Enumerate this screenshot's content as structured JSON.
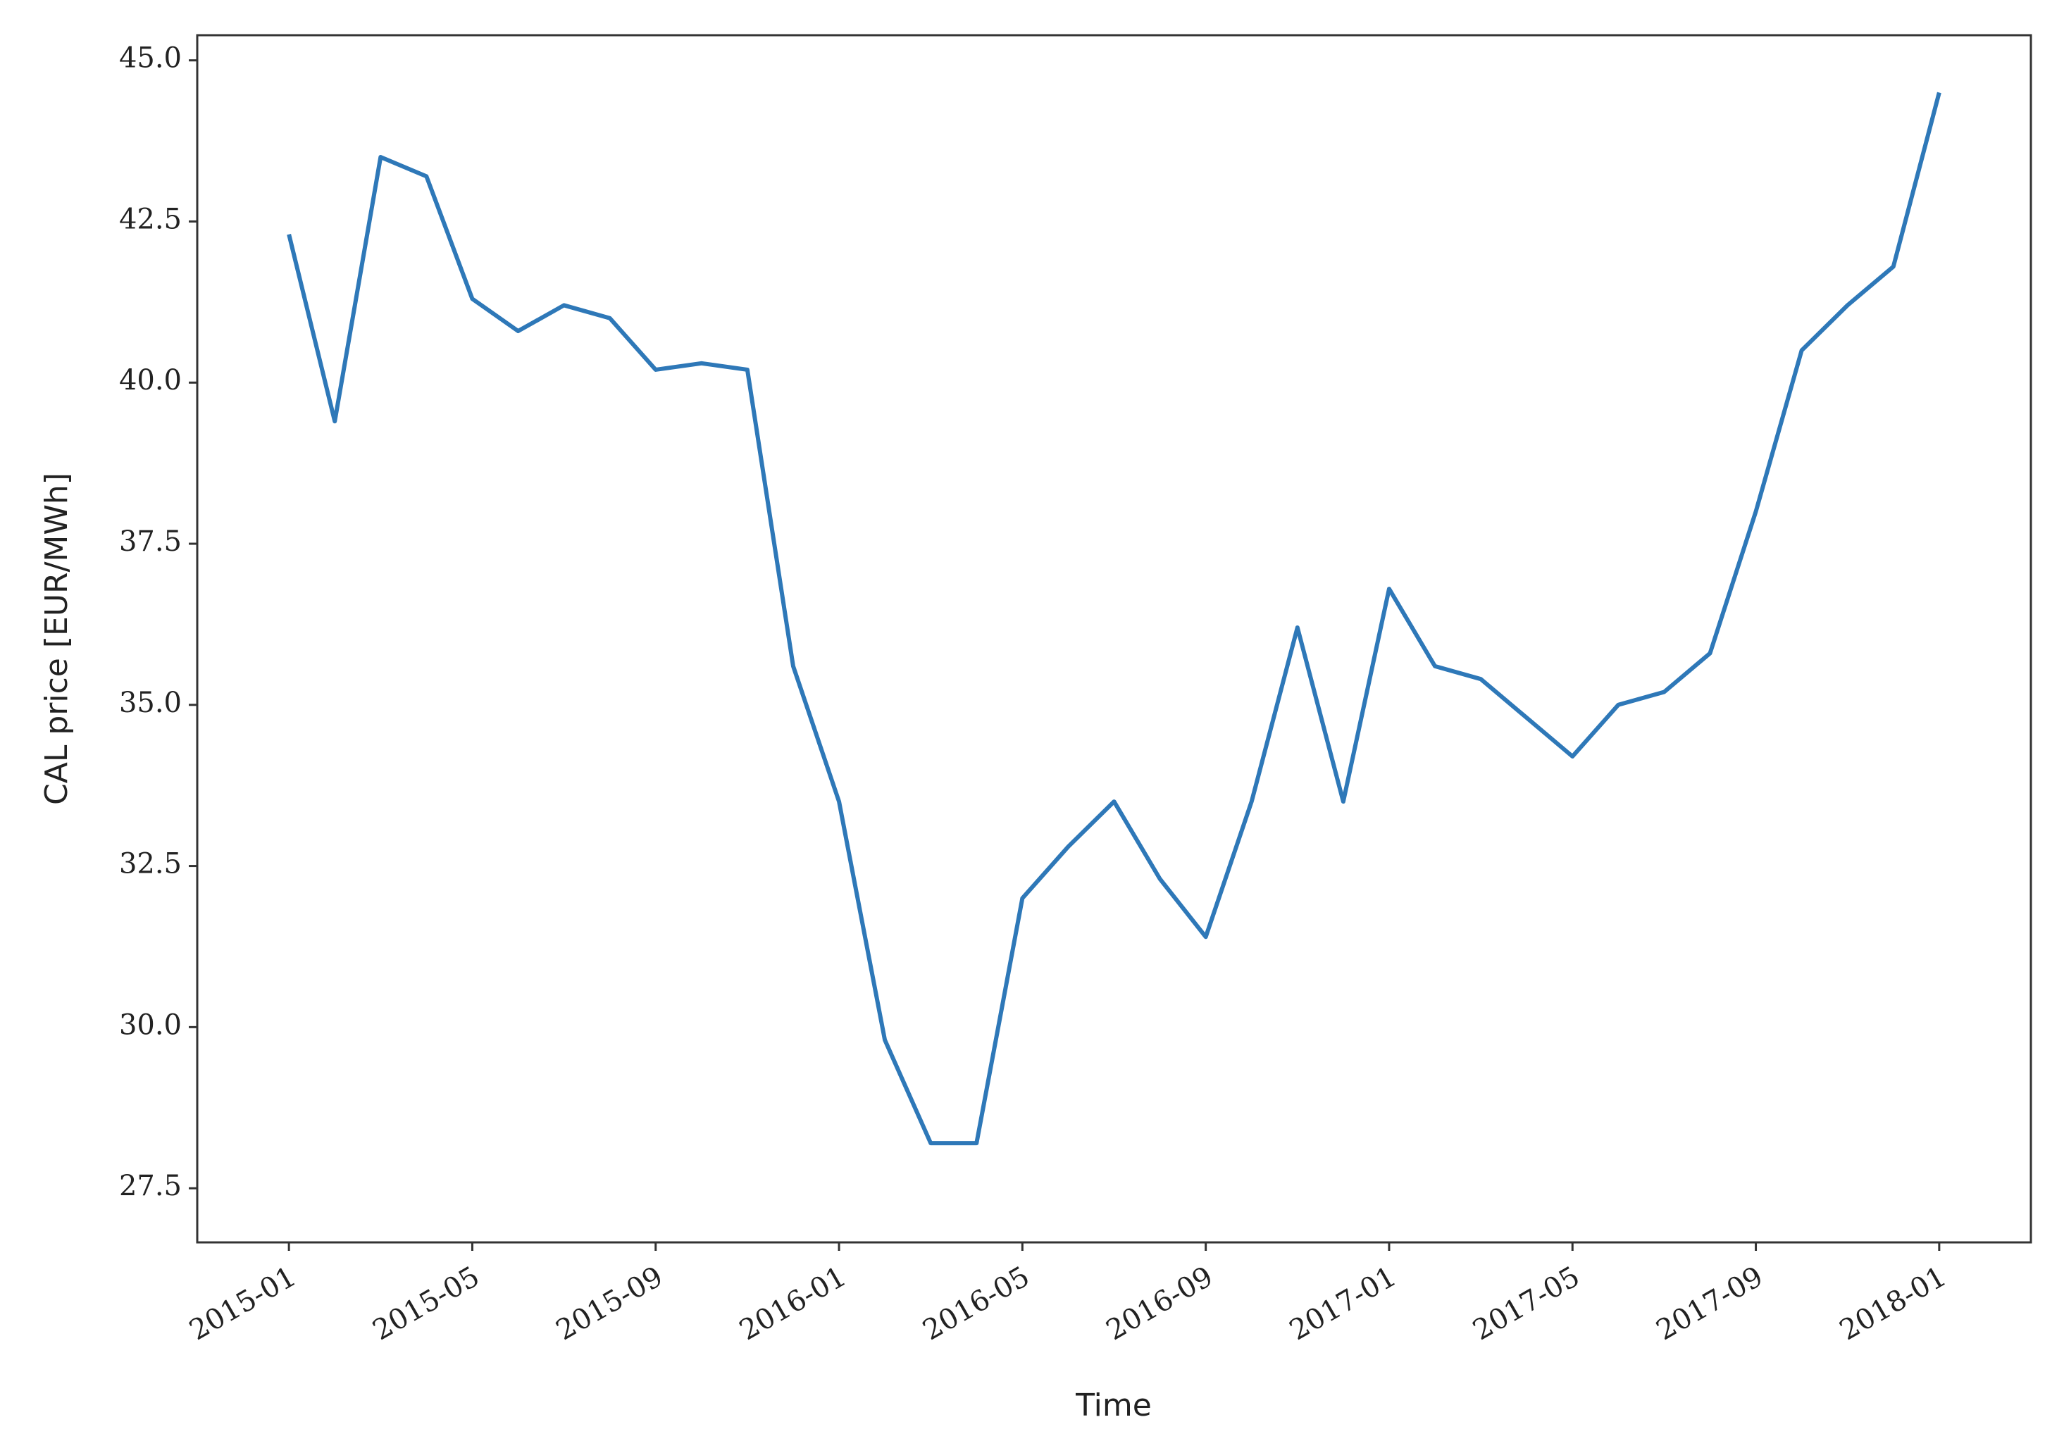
{
  "chart_data": {
    "type": "line",
    "x_label": "Time",
    "y_label": "CAL price [EUR/MWh]",
    "x": [
      "2015-01",
      "2015-02",
      "2015-03",
      "2015-04",
      "2015-05",
      "2015-06",
      "2015-07",
      "2015-08",
      "2015-09",
      "2015-10",
      "2015-11",
      "2015-12",
      "2016-01",
      "2016-02",
      "2016-03",
      "2016-04",
      "2016-05",
      "2016-06",
      "2016-07",
      "2016-08",
      "2016-09",
      "2016-10",
      "2016-11",
      "2016-12",
      "2017-01",
      "2017-02",
      "2017-03",
      "2017-04",
      "2017-05",
      "2017-06",
      "2017-07",
      "2017-08",
      "2017-09",
      "2017-10",
      "2017-11",
      "2017-12",
      "2018-01"
    ],
    "series": [
      {
        "color": "#2e78b8",
        "values": [
          42.3,
          39.4,
          43.5,
          43.2,
          41.3,
          40.8,
          41.2,
          41.0,
          40.2,
          40.3,
          40.2,
          35.6,
          33.5,
          29.8,
          28.2,
          28.2,
          32.0,
          32.8,
          33.5,
          32.3,
          31.4,
          33.5,
          36.2,
          33.5,
          36.8,
          35.6,
          35.4,
          34.8,
          34.2,
          35.0,
          35.2,
          35.8,
          38.0,
          40.5,
          41.2,
          41.8,
          44.5
        ]
      }
    ],
    "xlim": [
      "2014-11",
      "2018-03"
    ],
    "xticks": [
      "2015-01",
      "2015-05",
      "2015-09",
      "2016-01",
      "2016-05",
      "2016-09",
      "2017-01",
      "2017-05",
      "2017-09",
      "2018-01"
    ],
    "ylim": [
      26.66,
      45.39
    ],
    "yticks": [
      27.5,
      {
        "value": 30,
        "label": "30.0"
      },
      32.5,
      {
        "value": 35,
        "label": "35.0"
      },
      37.5,
      {
        "value": 40,
        "label": "40.0"
      },
      42.5,
      {
        "value": 45,
        "label": "45.0"
      }
    ]
  }
}
